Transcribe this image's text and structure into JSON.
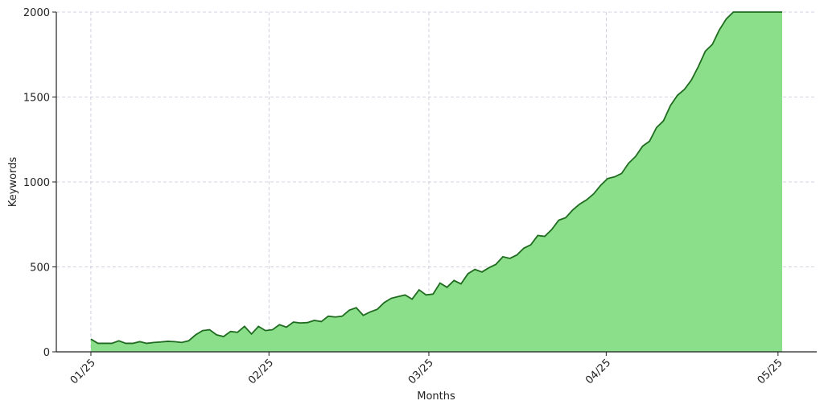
{
  "chart_data": {
    "type": "area",
    "x_label": "Months",
    "y_label": "Keywords",
    "x": [
      0,
      1,
      2,
      3,
      4,
      5,
      6,
      7,
      8,
      9,
      10,
      11,
      12,
      13,
      14,
      15,
      16,
      17,
      18,
      19,
      20,
      21,
      22,
      23,
      24,
      25,
      26,
      27,
      28,
      29,
      30,
      31,
      32,
      33,
      34,
      35,
      36,
      37,
      38,
      39,
      40,
      41,
      42,
      43,
      44,
      45,
      46,
      47,
      48,
      49,
      50,
      51,
      52,
      53,
      54,
      55,
      56,
      57,
      58,
      59,
      60,
      61,
      62,
      63,
      64,
      65,
      66,
      67,
      68,
      69,
      70,
      71,
      72,
      73,
      74,
      75,
      76,
      77,
      78,
      79,
      80,
      81,
      82,
      83,
      84,
      85,
      86,
      87,
      88,
      89,
      90,
      91,
      92,
      93,
      94,
      95,
      96,
      97,
      98,
      99
    ],
    "values": [
      75,
      50,
      50,
      50,
      65,
      50,
      50,
      60,
      50,
      55,
      58,
      62,
      60,
      55,
      65,
      100,
      125,
      130,
      100,
      90,
      120,
      115,
      150,
      105,
      150,
      125,
      130,
      160,
      145,
      175,
      170,
      172,
      185,
      178,
      210,
      205,
      210,
      245,
      260,
      215,
      235,
      250,
      290,
      315,
      325,
      335,
      310,
      365,
      335,
      340,
      405,
      380,
      420,
      400,
      460,
      485,
      470,
      495,
      515,
      560,
      550,
      570,
      610,
      630,
      685,
      680,
      720,
      775,
      790,
      835,
      870,
      895,
      930,
      980,
      1020,
      1030,
      1050,
      1110,
      1150,
      1210,
      1240,
      1320,
      1360,
      1450,
      1510,
      1545,
      1600,
      1680,
      1770,
      1810,
      1895,
      1960,
      2000,
      2000,
      2000,
      2000,
      2000,
      2000,
      2000,
      2000
    ],
    "fill_color": "#8bdf8b",
    "line_color": "#1f6b1f",
    "xlim": [
      -4.95,
      103.95
    ],
    "xticks": [
      {
        "value": 0,
        "label": "01/25"
      },
      {
        "value": 25.5,
        "label": "02/25"
      },
      {
        "value": 48.4,
        "label": "03/25"
      },
      {
        "value": 73.8,
        "label": "04/25"
      },
      {
        "value": 98.4,
        "label": "05/25"
      }
    ],
    "ylim": [
      0,
      2000
    ],
    "yticks": [
      0,
      500,
      1000,
      1500,
      2000
    ],
    "grid": true
  }
}
